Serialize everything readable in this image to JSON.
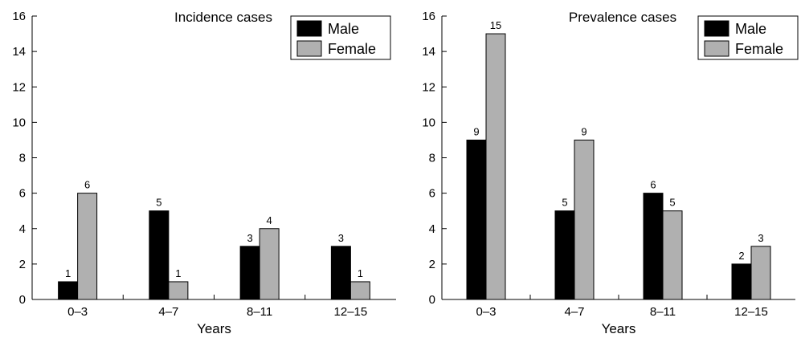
{
  "chart_data": [
    {
      "type": "bar",
      "title": "Incidence cases",
      "xlabel": "Years",
      "ylabel": "",
      "categories": [
        "0–3",
        "4–7",
        "8–11",
        "12–15"
      ],
      "ylim": [
        0,
        16
      ],
      "yticks": [
        0,
        2,
        4,
        6,
        8,
        10,
        12,
        14,
        16
      ],
      "legend_position": "top-right",
      "grid": false,
      "series": [
        {
          "name": "Male",
          "color": "#000000",
          "values": [
            1,
            5,
            3,
            3
          ]
        },
        {
          "name": "Female",
          "color": "#b0b0b0",
          "values": [
            6,
            1,
            4,
            1
          ]
        }
      ]
    },
    {
      "type": "bar",
      "title": "Prevalence cases",
      "xlabel": "Years",
      "ylabel": "",
      "categories": [
        "0–3",
        "4–7",
        "8–11",
        "12–15"
      ],
      "ylim": [
        0,
        16
      ],
      "yticks": [
        0,
        2,
        4,
        6,
        8,
        10,
        12,
        14,
        16
      ],
      "legend_position": "top-right",
      "grid": false,
      "series": [
        {
          "name": "Male",
          "color": "#000000",
          "values": [
            9,
            5,
            6,
            2
          ]
        },
        {
          "name": "Female",
          "color": "#b0b0b0",
          "values": [
            15,
            9,
            5,
            3
          ]
        }
      ]
    }
  ]
}
